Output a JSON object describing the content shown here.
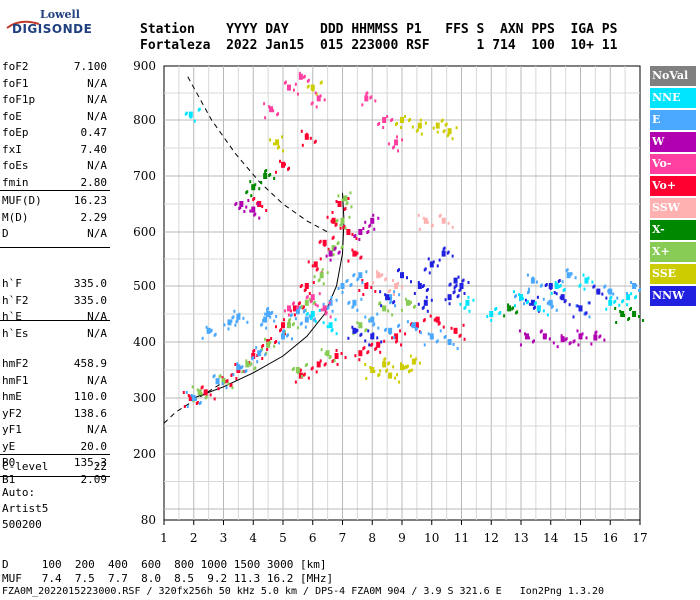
{
  "logo": {
    "top": "Lowell",
    "bottom": "DIGISONDE"
  },
  "header": {
    "line1": "Station    YYYY DAY    DDD HHMMSS P1   FFS S  AXN PPS  IGA PS",
    "line2": "Fortaleza  2022 Jan15  015 223000 RSF      1 714  100  10+ 11"
  },
  "left_params": {
    "block1": [
      {
        "name": "foF2",
        "value": "7.100"
      },
      {
        "name": "foF1",
        "value": "N/A"
      },
      {
        "name": "foF1p",
        "value": "N/A"
      },
      {
        "name": "foE",
        "value": "N/A"
      },
      {
        "name": "foEp",
        "value": "0.47"
      },
      {
        "name": "fxI",
        "value": "7.40"
      },
      {
        "name": "foEs",
        "value": "N/A"
      },
      {
        "name": "fmin",
        "value": "2.80"
      }
    ],
    "block2": [
      {
        "name": "MUF(D)",
        "value": "16.23"
      },
      {
        "name": "M(D)",
        "value": "2.29"
      },
      {
        "name": "D",
        "value": "N/A"
      }
    ],
    "block3": [
      {
        "name": "h`F",
        "value": "335.0"
      },
      {
        "name": "h`F2",
        "value": "335.0"
      },
      {
        "name": "h`E",
        "value": "N/A"
      },
      {
        "name": "h`Es",
        "value": "N/A"
      }
    ],
    "block4": [
      {
        "name": "hmF2",
        "value": "458.9"
      },
      {
        "name": "hmF1",
        "value": "N/A"
      },
      {
        "name": "hmE",
        "value": "110.0"
      },
      {
        "name": "yF2",
        "value": "138.6"
      },
      {
        "name": "yF1",
        "value": "N/A"
      },
      {
        "name": "yE",
        "value": "20.0"
      },
      {
        "name": "B0",
        "value": "135.3"
      },
      {
        "name": "B1",
        "value": "2.09"
      }
    ],
    "block5": [
      {
        "name": "C-level",
        "value": "22"
      }
    ],
    "auto": [
      "Auto:",
      "Artist5",
      "500200"
    ]
  },
  "legend": [
    {
      "label": "NoVal",
      "color": "#808080"
    },
    {
      "label": "NNE",
      "color": "#00e5ff"
    },
    {
      "label": "E",
      "color": "#4aa8ff"
    },
    {
      "label": "W",
      "color": "#b000b0"
    },
    {
      "label": "Vo-",
      "color": "#ff40a0"
    },
    {
      "label": "Vo+",
      "color": "#ff0030"
    },
    {
      "label": "SSW",
      "color": "#ffb0b0"
    },
    {
      "label": "X-",
      "color": "#008800"
    },
    {
      "label": "X+",
      "color": "#88cc55"
    },
    {
      "label": "SSE",
      "color": "#cccc00"
    },
    {
      "label": "NNW",
      "color": "#2020e0"
    }
  ],
  "bottom": {
    "line1": "D     100  200  400  600  800 1000 1500 3000 [km]",
    "line2": "MUF   7.4  7.5  7.7  8.0  8.5  9.2 11.3 16.2 [MHz]",
    "line3": "FZA0M_2022015223000.RSF / 320fx256h 50 kHz 5.0 km / DPS-4 FZA0M 904 / 3.9 S 321.6 E   Ion2Png 1.3.20"
  },
  "chart_data": {
    "type": "scatter",
    "xlabel": "",
    "ylabel": "",
    "xlim": [
      1,
      17
    ],
    "ylim": [
      80,
      900
    ],
    "x_ticks": [
      "1",
      "2",
      "3",
      "4",
      "5",
      "6",
      "7",
      "8",
      "9",
      "10",
      "11",
      "12",
      "13",
      "14",
      "15",
      "16",
      "17"
    ],
    "y_ticks": [
      "80",
      "200",
      "300",
      "400",
      "500",
      "600",
      "700",
      "800",
      "900"
    ],
    "grid": true,
    "series": [
      {
        "name": "Vo+",
        "color": "#ff0030",
        "points": [
          [
            1.9,
            300
          ],
          [
            2.4,
            310
          ],
          [
            3.0,
            330
          ],
          [
            3.5,
            350
          ],
          [
            4.0,
            375
          ],
          [
            4.5,
            400
          ],
          [
            5.0,
            430
          ],
          [
            5.4,
            460
          ],
          [
            5.8,
            500
          ],
          [
            6.1,
            540
          ],
          [
            6.4,
            580
          ],
          [
            6.7,
            620
          ],
          [
            6.9,
            650
          ],
          [
            7.2,
            600
          ],
          [
            7.4,
            560
          ],
          [
            7.8,
            500
          ],
          [
            5.6,
            340
          ],
          [
            6.2,
            360
          ],
          [
            6.8,
            375
          ],
          [
            7.6,
            380
          ],
          [
            8.2,
            395
          ],
          [
            8.8,
            410
          ],
          [
            9.5,
            430
          ],
          [
            10.2,
            440
          ],
          [
            10.8,
            420
          ],
          [
            4.2,
            650
          ],
          [
            5.0,
            720
          ],
          [
            5.8,
            770
          ]
        ]
      },
      {
        "name": "X+",
        "color": "#88cc55",
        "points": [
          [
            2.2,
            310
          ],
          [
            3.0,
            330
          ],
          [
            3.8,
            360
          ],
          [
            4.5,
            395
          ],
          [
            5.2,
            430
          ],
          [
            5.8,
            470
          ],
          [
            6.3,
            520
          ],
          [
            6.7,
            570
          ],
          [
            7.0,
            620
          ],
          [
            7.1,
            660
          ],
          [
            5.5,
            350
          ],
          [
            6.5,
            380
          ],
          [
            7.6,
            430
          ],
          [
            8.4,
            460
          ],
          [
            9.2,
            470
          ]
        ]
      },
      {
        "name": "E",
        "color": "#4aa8ff",
        "points": [
          [
            2.0,
            300
          ],
          [
            2.8,
            330
          ],
          [
            3.5,
            355
          ],
          [
            4.2,
            380
          ],
          [
            5.0,
            410
          ],
          [
            5.8,
            440
          ],
          [
            6.6,
            470
          ],
          [
            7.0,
            500
          ],
          [
            7.4,
            470
          ],
          [
            8.0,
            440
          ],
          [
            8.6,
            420
          ],
          [
            9.4,
            430
          ],
          [
            10.0,
            410
          ],
          [
            10.6,
            400
          ],
          [
            2.5,
            420
          ],
          [
            3.5,
            445
          ],
          [
            4.5,
            450
          ],
          [
            5.5,
            455
          ],
          [
            4.4,
            440
          ],
          [
            3.2,
            435
          ],
          [
            7.6,
            520
          ],
          [
            8.6,
            480
          ],
          [
            13.0,
            480
          ],
          [
            14.0,
            470
          ],
          [
            15.0,
            460
          ],
          [
            16.0,
            490
          ],
          [
            16.8,
            500
          ],
          [
            13.4,
            510
          ],
          [
            14.6,
            520
          ]
        ]
      },
      {
        "name": "NNW",
        "color": "#2020e0",
        "points": [
          [
            8.5,
            480
          ],
          [
            9.0,
            520
          ],
          [
            9.6,
            500
          ],
          [
            10.0,
            540
          ],
          [
            10.4,
            560
          ],
          [
            10.8,
            510
          ],
          [
            9.8,
            470
          ],
          [
            10.6,
            480
          ],
          [
            11.0,
            500
          ],
          [
            13.4,
            470
          ],
          [
            14.0,
            500
          ],
          [
            14.4,
            480
          ],
          [
            15.0,
            460
          ],
          [
            15.6,
            490
          ],
          [
            7.4,
            420
          ],
          [
            8.0,
            410
          ]
        ]
      },
      {
        "name": "NNE",
        "color": "#00e5ff",
        "points": [
          [
            13.0,
            480
          ],
          [
            13.6,
            460
          ],
          [
            14.2,
            500
          ],
          [
            15.2,
            510
          ],
          [
            16.0,
            470
          ],
          [
            16.6,
            480
          ],
          [
            11.2,
            470
          ],
          [
            12.0,
            450
          ],
          [
            6.0,
            450
          ],
          [
            6.6,
            430
          ],
          [
            1.9,
            810
          ]
        ]
      },
      {
        "name": "W",
        "color": "#b000b0",
        "points": [
          [
            13.2,
            410
          ],
          [
            13.8,
            410
          ],
          [
            14.4,
            405
          ],
          [
            15.0,
            410
          ],
          [
            15.5,
            408
          ],
          [
            7.6,
            600
          ],
          [
            8.0,
            620
          ],
          [
            6.6,
            560
          ],
          [
            3.6,
            650
          ],
          [
            4.0,
            640
          ]
        ]
      },
      {
        "name": "SSE",
        "color": "#cccc00",
        "points": [
          [
            8.0,
            350
          ],
          [
            8.6,
            340
          ],
          [
            9.0,
            355
          ],
          [
            9.4,
            365
          ],
          [
            8.4,
            360
          ],
          [
            9.0,
            800
          ],
          [
            9.6,
            790
          ],
          [
            10.2,
            790
          ],
          [
            10.6,
            780
          ],
          [
            4.8,
            760
          ],
          [
            6.0,
            860
          ]
        ]
      },
      {
        "name": "Vo-",
        "color": "#ff40a0",
        "points": [
          [
            4.6,
            820
          ],
          [
            5.2,
            860
          ],
          [
            5.6,
            880
          ],
          [
            6.2,
            840
          ],
          [
            7.8,
            840
          ],
          [
            8.4,
            800
          ],
          [
            8.8,
            760
          ],
          [
            5.2,
            460
          ],
          [
            6.0,
            480
          ],
          [
            6.4,
            460
          ]
        ]
      },
      {
        "name": "X-",
        "color": "#008800",
        "points": [
          [
            16.4,
            450
          ],
          [
            16.8,
            450
          ],
          [
            12.6,
            460
          ],
          [
            4.0,
            680
          ],
          [
            4.4,
            700
          ]
        ]
      },
      {
        "name": "SSW",
        "color": "#ffb0b0",
        "points": [
          [
            9.8,
            620
          ],
          [
            10.4,
            620
          ],
          [
            8.2,
            520
          ],
          [
            8.8,
            500
          ]
        ]
      }
    ],
    "curves": [
      {
        "name": "dashed",
        "style": "dashed",
        "points": [
          [
            1.0,
            255
          ],
          [
            1.4,
            275
          ],
          [
            2.0,
            295
          ],
          [
            2.6,
            315
          ],
          [
            3.2,
            335
          ]
        ]
      },
      {
        "name": "dashed-upper",
        "style": "dashed",
        "points": [
          [
            1.8,
            880
          ],
          [
            2.6,
            800
          ],
          [
            3.4,
            740
          ],
          [
            4.2,
            690
          ],
          [
            5.0,
            650
          ],
          [
            5.8,
            620
          ],
          [
            6.5,
            600
          ]
        ]
      },
      {
        "name": "profile",
        "style": "solid",
        "points": [
          [
            2.0,
            300
          ],
          [
            3.0,
            320
          ],
          [
            4.0,
            345
          ],
          [
            5.0,
            375
          ],
          [
            5.8,
            410
          ],
          [
            6.4,
            450
          ],
          [
            6.8,
            500
          ],
          [
            7.0,
            560
          ],
          [
            7.05,
            620
          ],
          [
            7.0,
            670
          ]
        ]
      }
    ]
  }
}
